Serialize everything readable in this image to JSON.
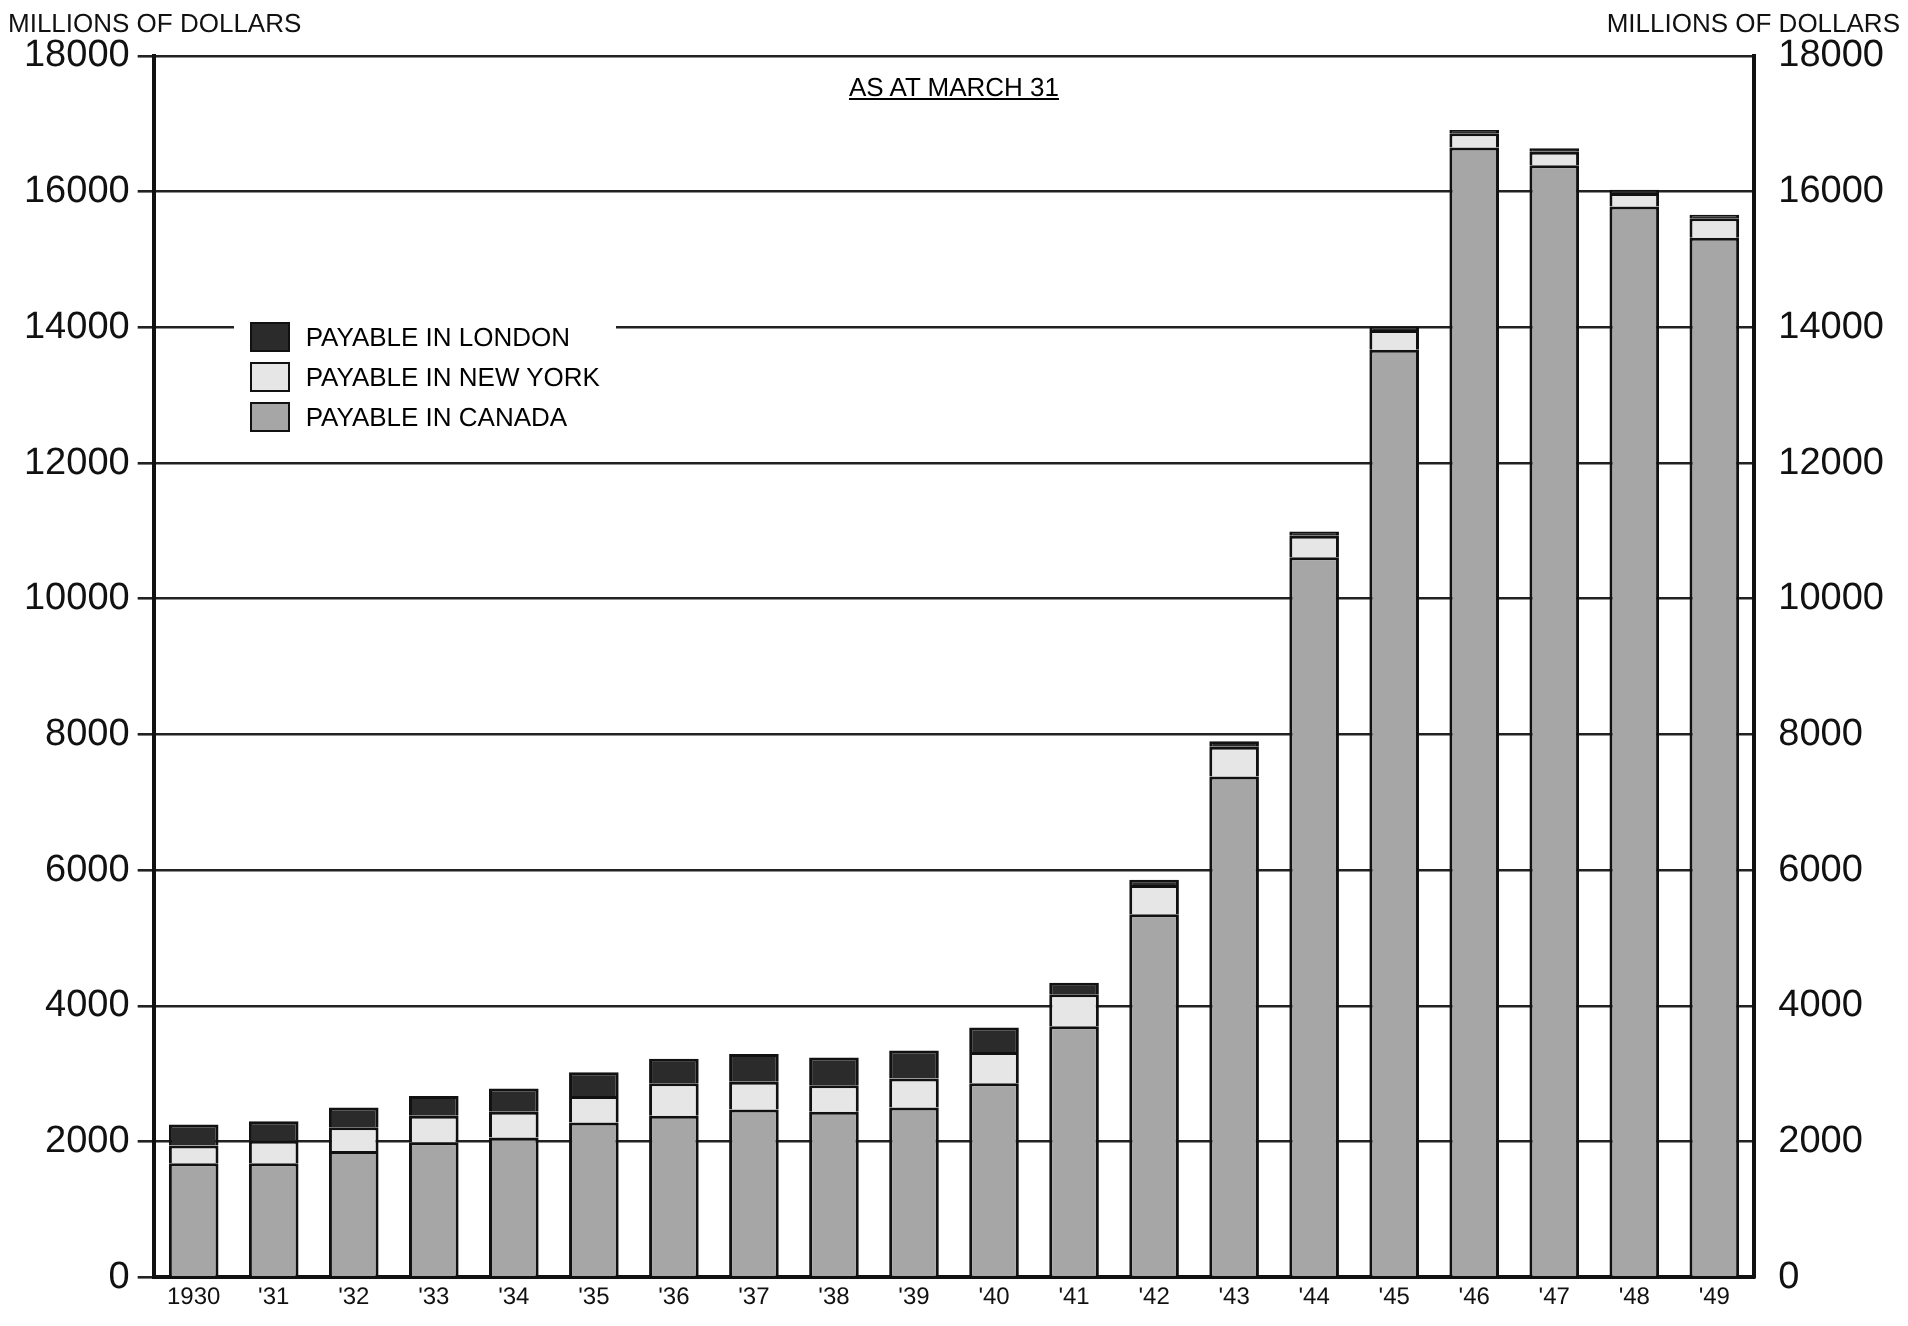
{
  "chart_data": {
    "type": "bar",
    "stacked": true,
    "ylabel": "MILLIONS OF DOLLARS",
    "y2label": "MILLIONS OF DOLLARS",
    "annotations": [
      "AS AT MARCH 31"
    ],
    "categories": [
      "1930",
      "'31",
      "'32",
      "'33",
      "'34",
      "'35",
      "'36",
      "'37",
      "'38",
      "'39",
      "'40",
      "'41",
      "'42",
      "'43",
      "'44",
      "'45",
      "'46",
      "'47",
      "'48",
      "'49"
    ],
    "series": [
      {
        "name": "PAYABLE IN CANADA",
        "color": "#a6a6a6",
        "values": [
          1680,
          1680,
          1860,
          1990,
          2060,
          2280,
          2380,
          2470,
          2440,
          2500,
          2860,
          3700,
          5350,
          7380,
          10610,
          13670,
          16650,
          16390,
          15780,
          15320
        ]
      },
      {
        "name": "PAYABLE IN NEW YORK",
        "color": "#e6e6e6",
        "values": [
          260,
          330,
          350,
          390,
          380,
          390,
          480,
          410,
          390,
          430,
          460,
          470,
          430,
          440,
          320,
          290,
          210,
          200,
          200,
          290
        ]
      },
      {
        "name": "PAYABLE IN LONDON",
        "color": "#2b2b2b",
        "values": [
          310,
          290,
          290,
          290,
          340,
          350,
          360,
          410,
          410,
          410,
          360,
          170,
          80,
          80,
          60,
          50,
          50,
          50,
          50,
          50
        ]
      }
    ],
    "ylim": [
      0,
      18000
    ],
    "yticks": [
      0,
      2000,
      4000,
      6000,
      8000,
      10000,
      12000,
      14000,
      16000,
      18000
    ],
    "y2lim": [
      0,
      18000
    ],
    "y2ticks": [
      0,
      2000,
      4000,
      6000,
      8000,
      10000,
      12000,
      14000,
      16000,
      18000
    ],
    "grid": "y",
    "legend": "top left"
  }
}
